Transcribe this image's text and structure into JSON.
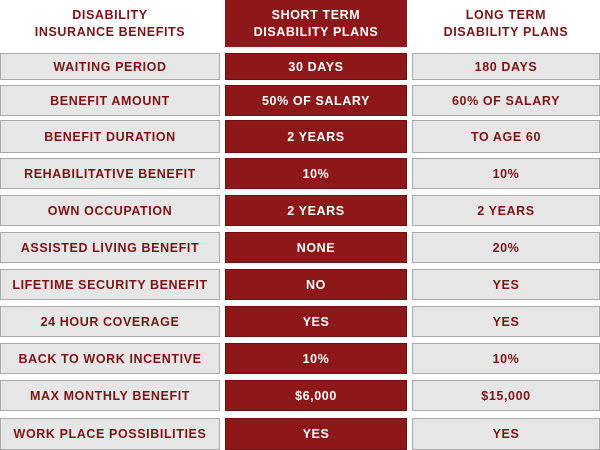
{
  "header": {
    "col1": "DISABILITY\nINSURANCE BENEFITS",
    "col2": "SHORT TERM\nDISABILITY PLANS",
    "col3": "LONG TERM\nDISABILITY PLANS"
  },
  "rows": [
    {
      "label": "WAITING PERIOD",
      "short_term": "30 DAYS",
      "long_term": "180 DAYS"
    },
    {
      "label": "BENEFIT AMOUNT",
      "short_term": "50% OF SALARY",
      "long_term": "60% OF SALARY"
    },
    {
      "label": "BENEFIT DURATION",
      "short_term": "2 YEARS",
      "long_term": "TO AGE 60"
    },
    {
      "label": "REHABILITATIVE BENEFIT",
      "short_term": "10%",
      "long_term": "10%"
    },
    {
      "label": "OWN OCCUPATION",
      "short_term": "2 YEARS",
      "long_term": "2 YEARS"
    },
    {
      "label": "ASSISTED LIVING BENEFIT",
      "short_term": "NONE",
      "long_term": "20%"
    },
    {
      "label": "LIFETIME SECURITY BENEFIT",
      "short_term": "NO",
      "long_term": "YES"
    },
    {
      "label": "24 HOUR COVERAGE",
      "short_term": "YES",
      "long_term": "YES"
    },
    {
      "label": "BACK TO WORK INCENTIVE",
      "short_term": "10%",
      "long_term": "10%"
    },
    {
      "label": "MAX MONTHLY BENEFIT",
      "short_term": "$6,000",
      "long_term": "$15,000"
    },
    {
      "label": "WORK PLACE POSSIBILITIES",
      "short_term": "YES",
      "long_term": "YES"
    }
  ],
  "colors": {
    "accent_red": "#8e1719",
    "text_red": "#7b1416",
    "cell_gray": "#e6e6e6"
  }
}
